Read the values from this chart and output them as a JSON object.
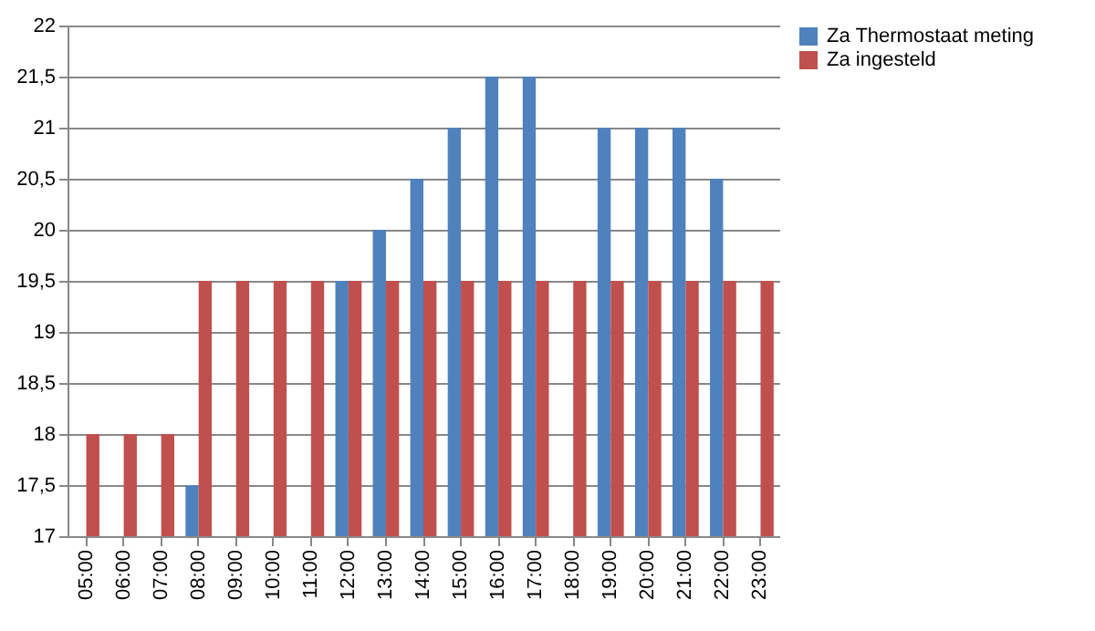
{
  "chart_data": {
    "type": "bar",
    "categories": [
      "05:00",
      "06:00",
      "07:00",
      "08:00",
      "09:00",
      "10:00",
      "11:00",
      "12:00",
      "13:00",
      "14:00",
      "15:00",
      "16:00",
      "17:00",
      "18:00",
      "19:00",
      "20:00",
      "21:00",
      "22:00",
      "23:00"
    ],
    "series": [
      {
        "name": "Za Thermostaat meting",
        "color": "#4f81bd",
        "values": [
          null,
          null,
          null,
          17.5,
          null,
          null,
          null,
          19.5,
          20,
          20.5,
          21,
          21.5,
          21.5,
          null,
          21,
          21,
          21,
          20.5,
          null
        ]
      },
      {
        "name": "Za ingesteld",
        "color": "#c0504d",
        "values": [
          18,
          18,
          18,
          19.5,
          19.5,
          19.5,
          19.5,
          19.5,
          19.5,
          19.5,
          19.5,
          19.5,
          19.5,
          19.5,
          19.5,
          19.5,
          19.5,
          19.5,
          19.5
        ]
      }
    ],
    "ylim": [
      17,
      22
    ],
    "yticks": [
      17,
      {
        "value": 17.5,
        "label": "17,5"
      },
      18,
      {
        "value": 18.5,
        "label": "18,5"
      },
      19,
      {
        "value": 19.5,
        "label": "19,5"
      },
      20,
      {
        "value": 20.5,
        "label": "20,5"
      },
      21,
      {
        "value": 21.5,
        "label": "21,5"
      },
      22
    ],
    "grid": "y",
    "legend": "right"
  }
}
